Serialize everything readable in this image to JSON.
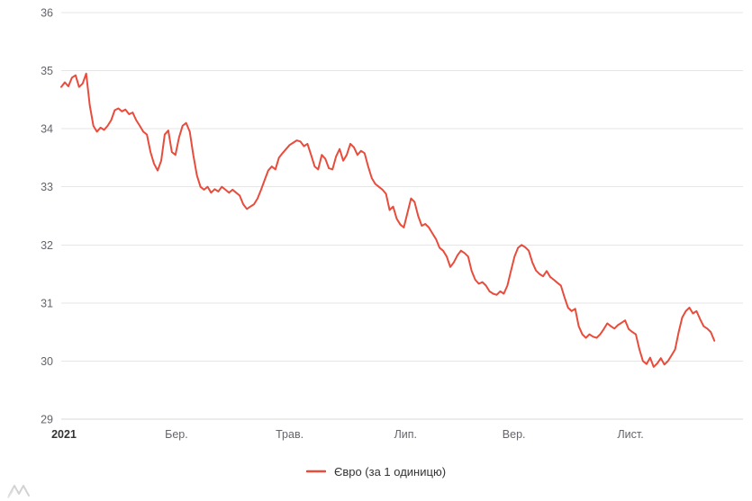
{
  "chart_data": {
    "type": "line",
    "title": "",
    "xlabel": "",
    "ylabel": "",
    "ylim": [
      29,
      36
    ],
    "yticks": [
      36,
      35,
      34,
      33,
      32,
      31,
      30,
      29
    ],
    "grid": "horizontal",
    "legend_position": "bottom",
    "x_extent": 0.958,
    "x_axis": {
      "ticks": [
        {
          "label": "2021",
          "pos": 0.004,
          "emphasis": true
        },
        {
          "label": "Бер.",
          "pos": 0.169,
          "emphasis": false
        },
        {
          "label": "Трав.",
          "pos": 0.335,
          "emphasis": false
        },
        {
          "label": "Лип.",
          "pos": 0.505,
          "emphasis": false
        },
        {
          "label": "Вер.",
          "pos": 0.664,
          "emphasis": false
        },
        {
          "label": "Лист.",
          "pos": 0.835,
          "emphasis": false
        }
      ]
    },
    "series": [
      {
        "name": "Євро (за 1 одиницю)",
        "color": "#e74c3c",
        "values": [
          34.72,
          34.8,
          34.73,
          34.88,
          34.92,
          34.72,
          34.78,
          34.95,
          34.4,
          34.05,
          33.95,
          34.02,
          33.98,
          34.05,
          34.15,
          34.32,
          34.35,
          34.3,
          34.33,
          34.25,
          34.28,
          34.15,
          34.05,
          33.95,
          33.9,
          33.6,
          33.4,
          33.28,
          33.45,
          33.9,
          33.97,
          33.6,
          33.55,
          33.85,
          34.05,
          34.1,
          33.95,
          33.55,
          33.2,
          33.0,
          32.95,
          33.0,
          32.9,
          32.96,
          32.92,
          33.0,
          32.95,
          32.9,
          32.95,
          32.9,
          32.85,
          32.7,
          32.62,
          32.66,
          32.7,
          32.8,
          32.95,
          33.12,
          33.28,
          33.35,
          33.3,
          33.5,
          33.58,
          33.65,
          33.72,
          33.76,
          33.8,
          33.78,
          33.7,
          33.74,
          33.55,
          33.35,
          33.3,
          33.55,
          33.48,
          33.32,
          33.3,
          33.52,
          33.65,
          33.45,
          33.55,
          33.74,
          33.68,
          33.55,
          33.62,
          33.58,
          33.35,
          33.15,
          33.05,
          33.0,
          32.95,
          32.88,
          32.6,
          32.66,
          32.45,
          32.35,
          32.3,
          32.55,
          32.8,
          32.74,
          32.5,
          32.33,
          32.36,
          32.3,
          32.2,
          32.1,
          31.95,
          31.9,
          31.8,
          31.62,
          31.7,
          31.82,
          31.9,
          31.86,
          31.8,
          31.55,
          31.4,
          31.33,
          31.36,
          31.3,
          31.2,
          31.16,
          31.14,
          31.2,
          31.16,
          31.3,
          31.55,
          31.8,
          31.95,
          32.0,
          31.96,
          31.9,
          31.7,
          31.56,
          31.5,
          31.46,
          31.55,
          31.45,
          31.4,
          31.35,
          31.3,
          31.1,
          30.92,
          30.86,
          30.9,
          30.6,
          30.46,
          30.4,
          30.46,
          30.42,
          30.4,
          30.46,
          30.55,
          30.65,
          30.6,
          30.56,
          30.62,
          30.66,
          30.7,
          30.55,
          30.5,
          30.46,
          30.2,
          30.0,
          29.95,
          30.06,
          29.9,
          29.96,
          30.05,
          29.94,
          30.0,
          30.1,
          30.2,
          30.5,
          30.75,
          30.86,
          30.92,
          30.82,
          30.86,
          30.72,
          30.6,
          30.56,
          30.5,
          30.35
        ]
      }
    ]
  },
  "legend": {
    "items": [
      {
        "label": "Євро (за 1 одиницю)"
      }
    ]
  },
  "icons": {
    "watermark": "minfin-logo-icon"
  },
  "colors": {
    "series_red": "#e74c3c",
    "grid": "#e6e6e6",
    "tick_text": "#65656b",
    "year_text": "#333333",
    "legend_text": "#333333"
  }
}
